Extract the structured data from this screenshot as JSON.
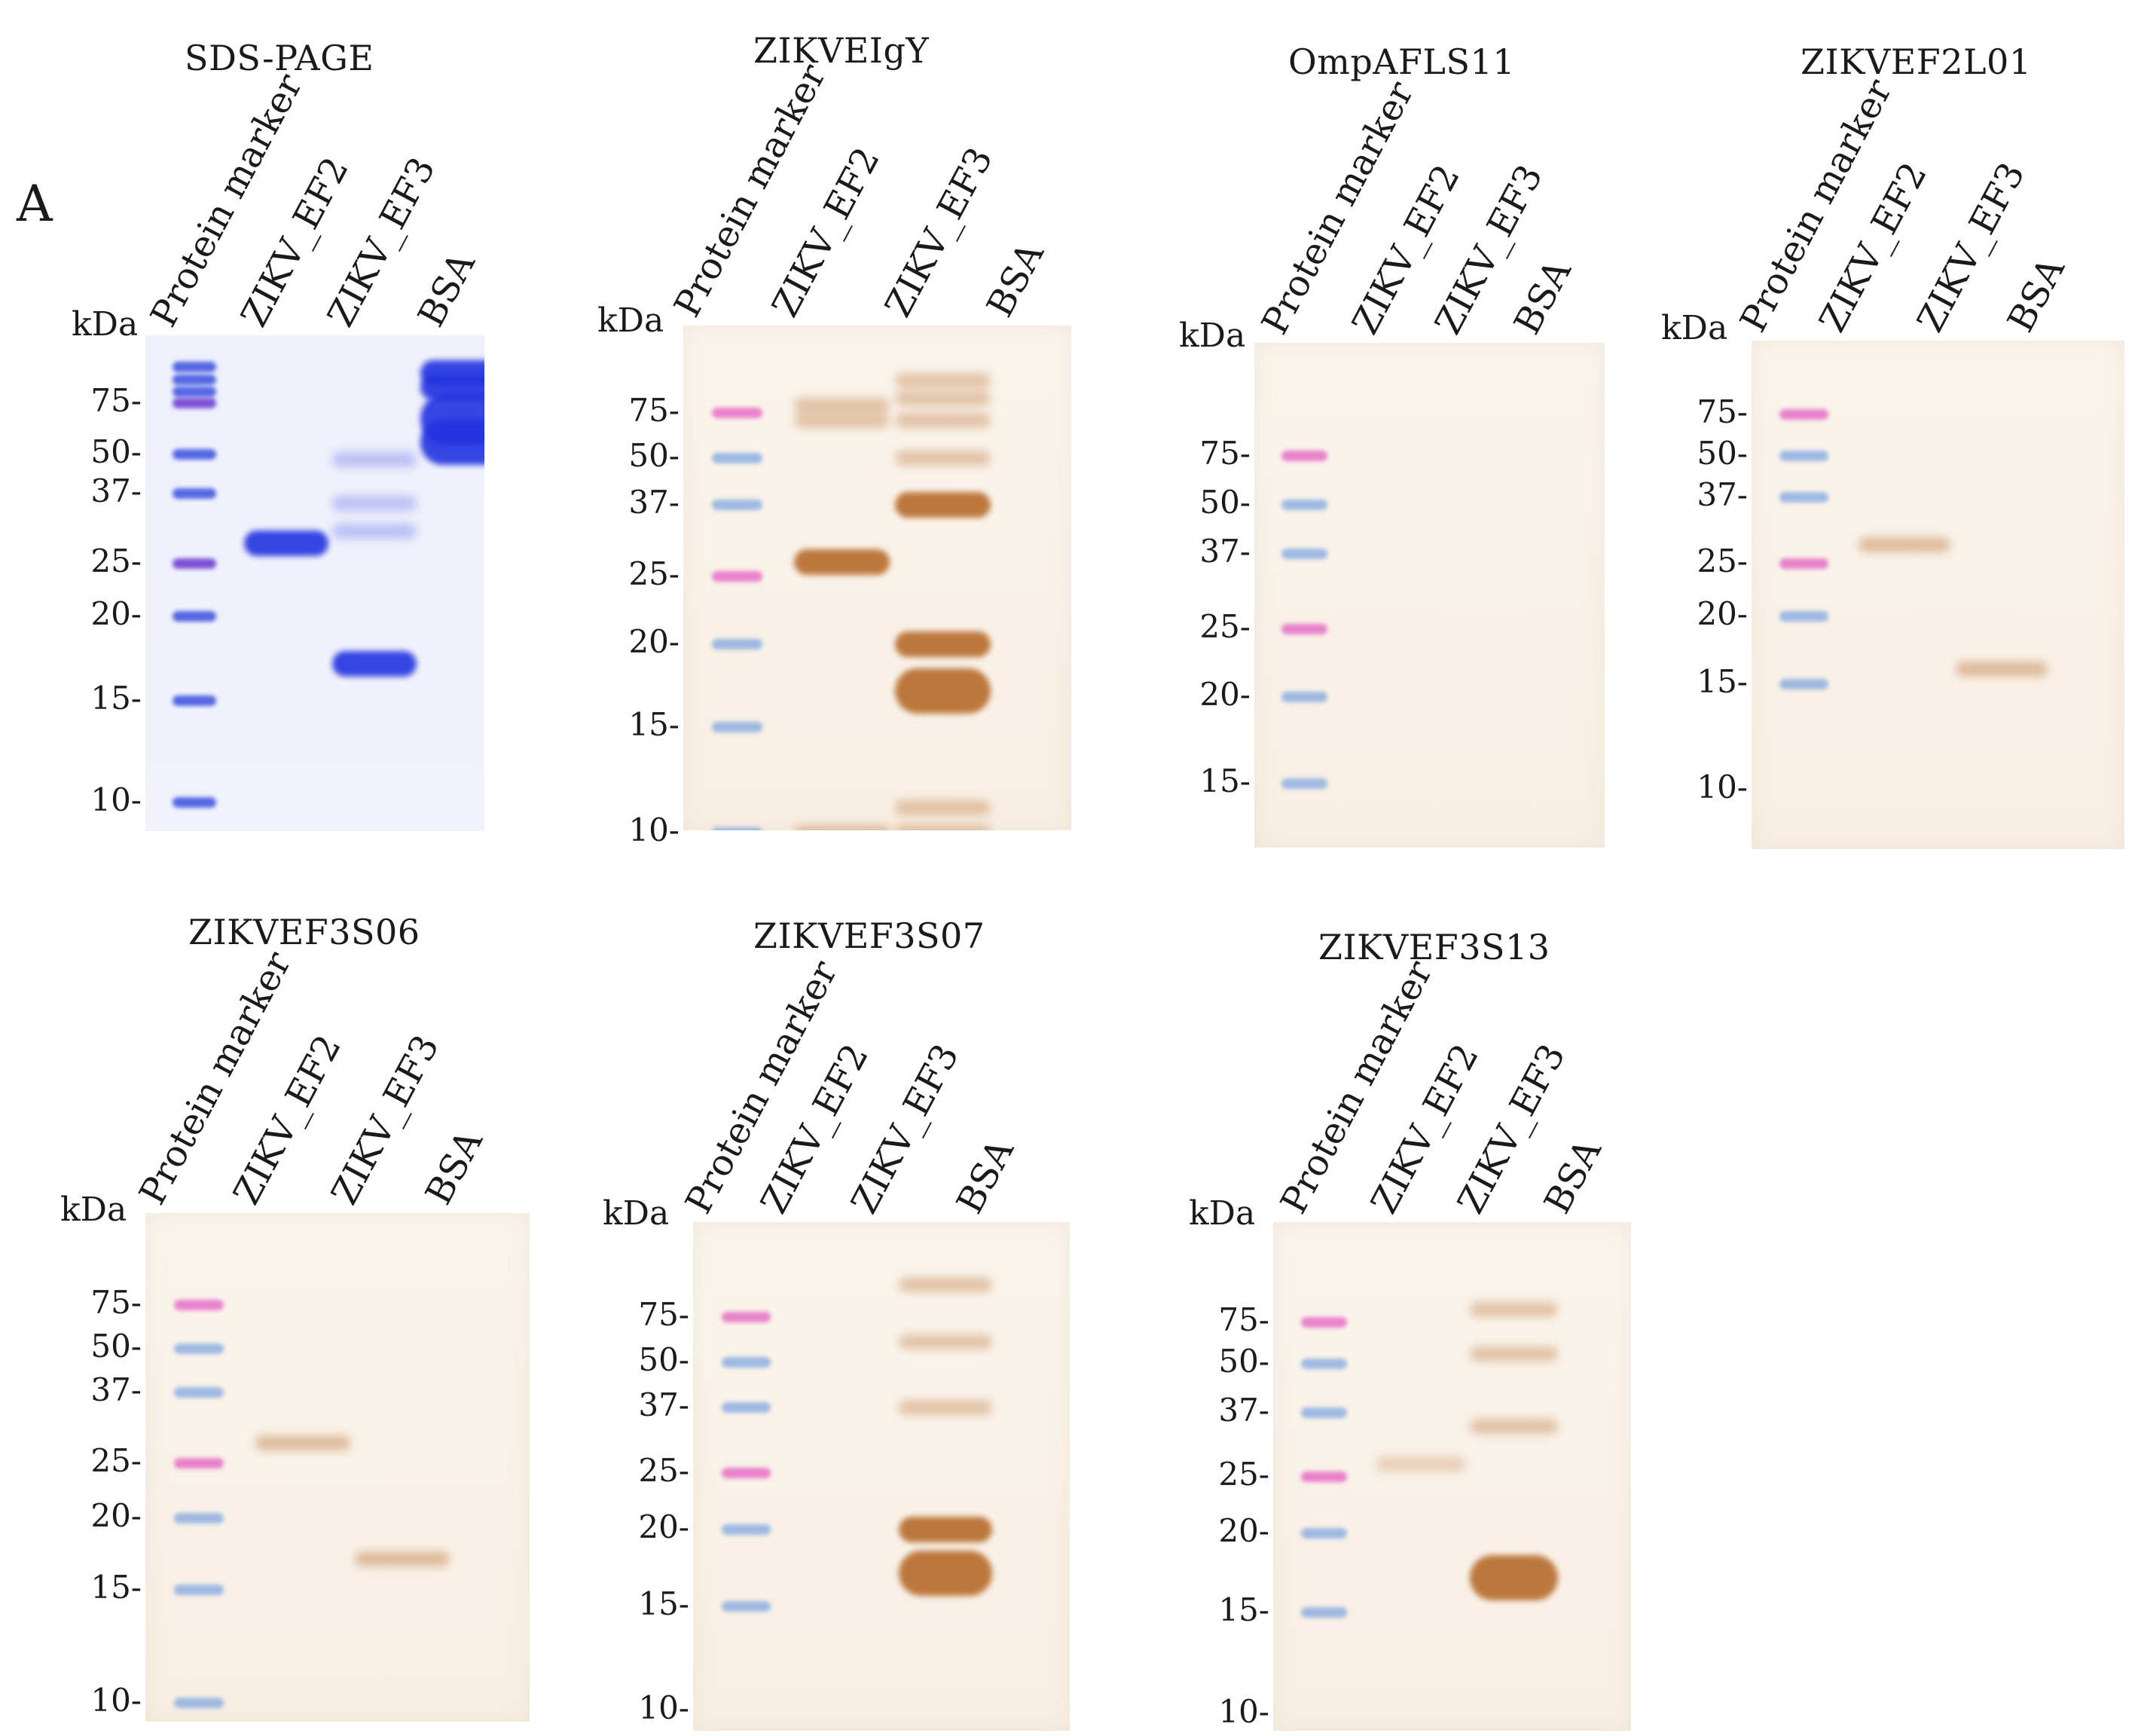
{
  "figure": {
    "panel_letter": "A",
    "lane_labels": [
      "Protein marker",
      "ZIKV_EF2",
      "ZIKV_EF3",
      "BSA"
    ],
    "axis_unit": "kDa",
    "panels": [
      {
        "title": "SDS-PAGE",
        "ticks": [
          "75-",
          "50-",
          "37-",
          "25-",
          "20-",
          "15-",
          "10-"
        ],
        "stain": "coomassie",
        "bands": {
          "marker": [
            100,
            90,
            82,
            75,
            50,
            37,
            25,
            20,
            15,
            10
          ],
          "ZIKV_EF2": [
            28
          ],
          "ZIKV_EF3": [
            48,
            35,
            30,
            17
          ],
          "BSA": [
            95,
            85,
            66,
            55
          ]
        }
      },
      {
        "title": "ZIKVEIgY",
        "ticks": [
          "75-",
          "50-",
          "37-",
          "25-",
          "20-",
          "15-",
          "10-"
        ],
        "stain": "dab",
        "bands": {
          "marker": [
            75,
            50,
            37,
            25,
            20,
            15,
            10
          ],
          "ZIKV_EF2": [
            80,
            70,
            27,
            10
          ],
          "ZIKV_EF3": [
            100,
            85,
            70,
            50,
            37,
            20,
            17,
            11,
            10
          ],
          "BSA": []
        }
      },
      {
        "title": "OmpAFLS11",
        "ticks": [
          "75-",
          "50-",
          "37-",
          "25-",
          "20-",
          "15-"
        ],
        "stain": "dab",
        "bands": {
          "marker": [
            75,
            50,
            37,
            25,
            20,
            15
          ],
          "ZIKV_EF2": [],
          "ZIKV_EF3": [],
          "BSA": []
        }
      },
      {
        "title": "ZIKVEF2L01",
        "ticks": [
          "75-",
          "50-",
          "37-",
          "25-",
          "20-",
          "15-",
          "10-"
        ],
        "stain": "dab",
        "bands": {
          "marker": [
            75,
            50,
            37,
            25,
            20,
            15
          ],
          "ZIKV_EF2": [
            28
          ],
          "ZIKV_EF3": [
            16
          ],
          "BSA": []
        }
      },
      {
        "title": "ZIKVEF3S06",
        "ticks": [
          "75-",
          "50-",
          "37-",
          "25-",
          "20-",
          "15-",
          "10-"
        ],
        "stain": "dab",
        "bands": {
          "marker": [
            75,
            50,
            37,
            25,
            20,
            15,
            10
          ],
          "ZIKV_EF2": [
            28
          ],
          "ZIKV_EF3": [
            17
          ],
          "BSA": []
        }
      },
      {
        "title": "ZIKVEF3S07",
        "ticks": [
          "75-",
          "50-",
          "37-",
          "25-",
          "20-",
          "15-",
          "10-"
        ],
        "stain": "dab",
        "bands": {
          "marker": [
            75,
            50,
            37,
            25,
            20,
            15
          ],
          "ZIKV_EF2": [],
          "ZIKV_EF3": [
            100,
            60,
            37,
            20,
            17
          ],
          "BSA": []
        }
      },
      {
        "title": "ZIKVEF3S13",
        "ticks": [
          "75-",
          "50-",
          "37-",
          "25-",
          "20-",
          "15-",
          "10-"
        ],
        "stain": "dab",
        "bands": {
          "marker": [
            75,
            50,
            37,
            25,
            20,
            15
          ],
          "ZIKV_EF2": [
            27
          ],
          "ZIKV_EF3": [
            85,
            55,
            34,
            17
          ],
          "BSA": []
        }
      }
    ]
  }
}
